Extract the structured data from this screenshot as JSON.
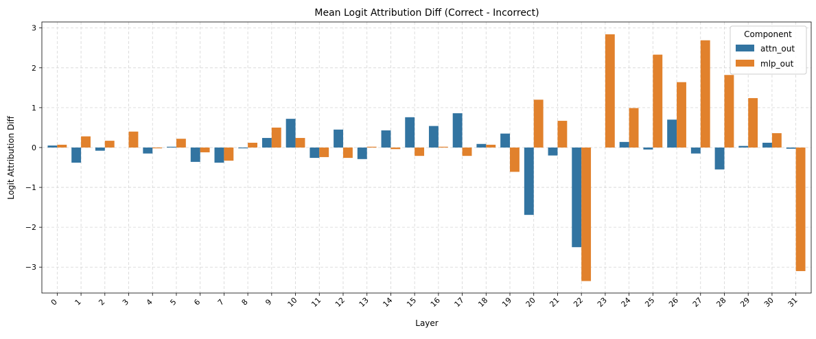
{
  "chart_data": {
    "type": "bar",
    "title": "Mean Logit Attribution Diff (Correct - Incorrect)",
    "xlabel": "Layer",
    "ylabel": "Logit Attribution Diff",
    "categories": [
      "0",
      "1",
      "2",
      "3",
      "4",
      "5",
      "6",
      "7",
      "8",
      "9",
      "10",
      "11",
      "12",
      "13",
      "14",
      "15",
      "16",
      "17",
      "18",
      "19",
      "20",
      "21",
      "22",
      "23",
      "24",
      "25",
      "26",
      "27",
      "28",
      "29",
      "30",
      "31"
    ],
    "series": [
      {
        "name": "attn_out",
        "color": "#3274a1",
        "values": [
          0.05,
          -0.38,
          -0.08,
          0.0,
          -0.15,
          0.02,
          -0.36,
          -0.38,
          -0.02,
          0.24,
          0.72,
          -0.26,
          0.45,
          -0.29,
          0.43,
          0.76,
          0.54,
          0.86,
          0.09,
          0.35,
          -1.69,
          -0.2,
          -2.5,
          0.0,
          0.14,
          -0.05,
          0.7,
          -0.15,
          -0.55,
          0.04,
          0.12,
          -0.03
        ]
      },
      {
        "name": "mlp_out",
        "color": "#e1812c",
        "values": [
          0.07,
          0.28,
          0.17,
          0.4,
          -0.02,
          0.22,
          -0.12,
          -0.33,
          0.12,
          0.5,
          0.24,
          -0.24,
          -0.26,
          0.02,
          -0.04,
          -0.21,
          0.02,
          -0.21,
          0.07,
          -0.61,
          1.2,
          0.67,
          -3.35,
          2.84,
          0.99,
          2.33,
          1.64,
          2.69,
          1.82,
          1.24,
          0.36,
          -3.1
        ]
      }
    ],
    "ylim": [
      -3.65,
      3.15
    ],
    "yticks": [
      -3,
      -2,
      -1,
      0,
      1,
      2,
      3
    ],
    "grid": true,
    "legend": {
      "title": "Component",
      "position": "top-right"
    }
  }
}
